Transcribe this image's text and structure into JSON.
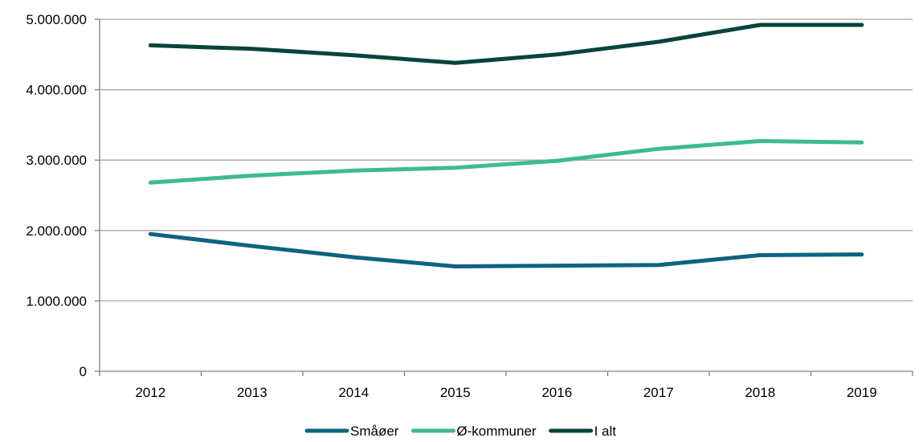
{
  "chart_data": {
    "type": "line",
    "title": "",
    "xlabel": "",
    "ylabel": "",
    "categories": [
      "2012",
      "2013",
      "2014",
      "2015",
      "2016",
      "2017",
      "2018",
      "2019"
    ],
    "ylim": [
      0,
      5000000
    ],
    "yticks": [
      0,
      1000000,
      2000000,
      3000000,
      4000000,
      5000000
    ],
    "ytick_labels": [
      "0",
      "1.000.000",
      "2.000.000",
      "3.000.000",
      "4.000.000",
      "5.000.000"
    ],
    "grid": "horizontal",
    "legend_position": "bottom",
    "series": [
      {
        "name": "Småøer",
        "color": "#0e6480",
        "values": [
          1950000,
          1780000,
          1620000,
          1490000,
          1500000,
          1510000,
          1650000,
          1660000
        ]
      },
      {
        "name": "Ø-kommuner",
        "color": "#3dbb8f",
        "values": [
          2680000,
          2780000,
          2850000,
          2890000,
          2990000,
          3160000,
          3270000,
          3250000
        ]
      },
      {
        "name": "I alt",
        "color": "#07443c",
        "values": [
          4630000,
          4580000,
          4490000,
          4380000,
          4500000,
          4680000,
          4920000,
          4920000
        ]
      }
    ]
  }
}
